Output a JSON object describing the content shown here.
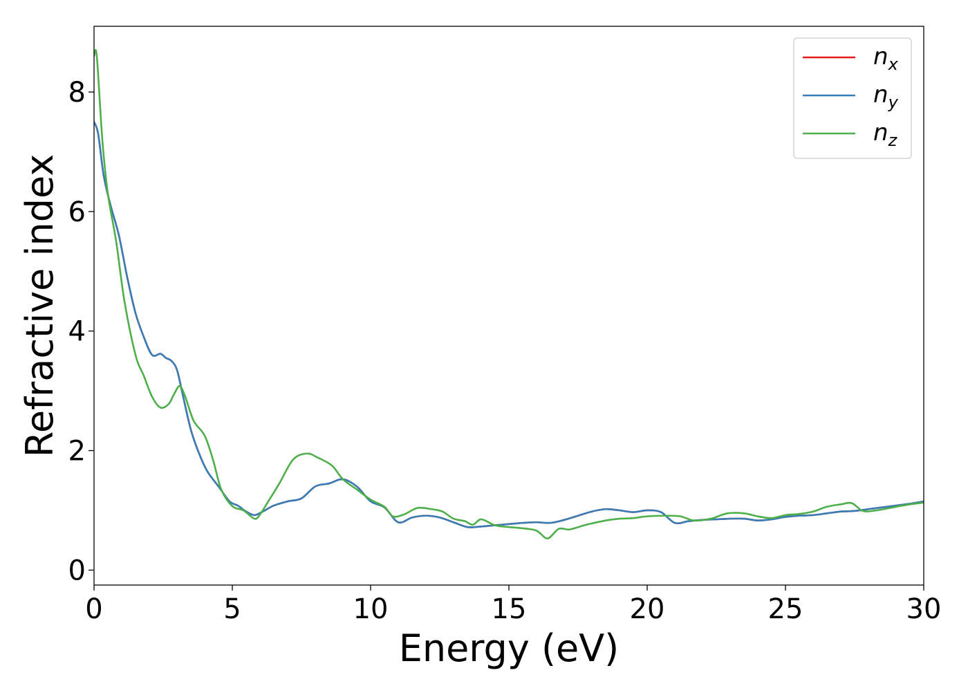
{
  "chart_data": {
    "type": "line",
    "title": "",
    "xlabel": "Energy (eV)",
    "ylabel": "Refractive index",
    "xlim": [
      0,
      30
    ],
    "ylim": [
      -0.25,
      9.1
    ],
    "xticks": [
      0,
      5,
      10,
      15,
      20,
      25,
      30
    ],
    "yticks": [
      0,
      2,
      4,
      6,
      8
    ],
    "grid": false,
    "legend_position": "top-right",
    "series": [
      {
        "name": "n_x",
        "legend_base": "n",
        "legend_sub": "x",
        "color": "#e41a1c",
        "x": [
          0,
          0.15,
          0.35,
          0.6,
          0.9,
          1.2,
          1.5,
          1.8,
          2.1,
          2.4,
          2.6,
          2.8,
          3.0,
          3.2,
          3.5,
          3.8,
          4.1,
          4.5,
          4.9,
          5.2,
          5.5,
          5.8,
          6.1,
          6.5,
          7.0,
          7.5,
          8.0,
          8.5,
          9.0,
          9.5,
          10.0,
          10.5,
          11.0,
          11.5,
          12.0,
          12.5,
          13.0,
          13.5,
          14.0,
          14.5,
          15.0,
          15.5,
          16.0,
          16.5,
          17.0,
          17.5,
          18.0,
          18.5,
          19.0,
          19.5,
          20.0,
          20.5,
          21.0,
          21.5,
          22.0,
          22.5,
          23.0,
          23.5,
          24.0,
          24.5,
          25.0,
          25.5,
          26.0,
          26.5,
          27.0,
          27.5,
          28.0,
          28.5,
          29.0,
          29.5,
          30.0
        ],
        "y": [
          7.5,
          7.3,
          6.6,
          6.1,
          5.6,
          4.9,
          4.3,
          3.9,
          3.6,
          3.62,
          3.55,
          3.5,
          3.35,
          2.95,
          2.35,
          1.95,
          1.65,
          1.4,
          1.15,
          1.08,
          0.98,
          0.92,
          0.98,
          1.08,
          1.15,
          1.2,
          1.4,
          1.45,
          1.52,
          1.4,
          1.15,
          1.05,
          0.8,
          0.88,
          0.91,
          0.88,
          0.8,
          0.72,
          0.73,
          0.75,
          0.77,
          0.79,
          0.8,
          0.79,
          0.84,
          0.91,
          0.98,
          1.02,
          1.0,
          0.97,
          1.0,
          0.97,
          0.79,
          0.82,
          0.84,
          0.85,
          0.86,
          0.86,
          0.83,
          0.85,
          0.89,
          0.91,
          0.92,
          0.95,
          0.98,
          0.99,
          1.02,
          1.05,
          1.08,
          1.11,
          1.15
        ]
      },
      {
        "name": "n_y",
        "legend_base": "n",
        "legend_sub": "y",
        "color": "#377eb8",
        "x": [
          0,
          0.15,
          0.35,
          0.6,
          0.9,
          1.2,
          1.5,
          1.8,
          2.1,
          2.4,
          2.6,
          2.8,
          3.0,
          3.2,
          3.5,
          3.8,
          4.1,
          4.5,
          4.9,
          5.2,
          5.5,
          5.8,
          6.1,
          6.5,
          7.0,
          7.5,
          8.0,
          8.5,
          9.0,
          9.5,
          10.0,
          10.5,
          11.0,
          11.5,
          12.0,
          12.5,
          13.0,
          13.5,
          14.0,
          14.5,
          15.0,
          15.5,
          16.0,
          16.5,
          17.0,
          17.5,
          18.0,
          18.5,
          19.0,
          19.5,
          20.0,
          20.5,
          21.0,
          21.5,
          22.0,
          22.5,
          23.0,
          23.5,
          24.0,
          24.5,
          25.0,
          25.5,
          26.0,
          26.5,
          27.0,
          27.5,
          28.0,
          28.5,
          29.0,
          29.5,
          30.0
        ],
        "y": [
          7.5,
          7.3,
          6.6,
          6.1,
          5.6,
          4.9,
          4.3,
          3.9,
          3.6,
          3.62,
          3.55,
          3.5,
          3.35,
          2.95,
          2.35,
          1.95,
          1.65,
          1.4,
          1.15,
          1.08,
          0.98,
          0.92,
          0.98,
          1.08,
          1.15,
          1.2,
          1.4,
          1.45,
          1.52,
          1.4,
          1.15,
          1.05,
          0.8,
          0.88,
          0.91,
          0.88,
          0.8,
          0.72,
          0.73,
          0.75,
          0.77,
          0.79,
          0.8,
          0.79,
          0.84,
          0.91,
          0.98,
          1.02,
          1.0,
          0.97,
          1.0,
          0.97,
          0.79,
          0.82,
          0.84,
          0.85,
          0.86,
          0.86,
          0.83,
          0.85,
          0.89,
          0.91,
          0.92,
          0.95,
          0.98,
          0.99,
          1.02,
          1.05,
          1.08,
          1.11,
          1.15
        ]
      },
      {
        "name": "n_z",
        "legend_base": "n",
        "legend_sub": "z",
        "color": "#4daf4a",
        "x": [
          0,
          0.1,
          0.3,
          0.5,
          0.8,
          1.1,
          1.5,
          1.8,
          2.1,
          2.4,
          2.7,
          2.9,
          3.1,
          3.3,
          3.6,
          4.0,
          4.3,
          4.6,
          5.0,
          5.4,
          5.8,
          6.0,
          6.3,
          6.7,
          7.2,
          7.7,
          8.1,
          8.6,
          9.0,
          9.5,
          10.0,
          10.5,
          10.8,
          11.2,
          11.7,
          12.2,
          12.6,
          13.0,
          13.4,
          13.7,
          14.0,
          14.5,
          15.0,
          15.5,
          16.0,
          16.4,
          16.8,
          17.2,
          17.8,
          18.5,
          19.0,
          19.5,
          20.0,
          20.7,
          21.2,
          21.7,
          22.3,
          22.9,
          23.5,
          24.0,
          24.5,
          25.0,
          25.5,
          26.0,
          26.5,
          27.0,
          27.4,
          27.8,
          28.3,
          29.0,
          29.5,
          30.0
        ],
        "y": [
          8.6,
          8.6,
          7.2,
          6.3,
          5.5,
          4.5,
          3.6,
          3.25,
          2.9,
          2.72,
          2.78,
          2.95,
          3.08,
          2.9,
          2.5,
          2.25,
          1.85,
          1.35,
          1.07,
          1.0,
          0.86,
          0.93,
          1.15,
          1.45,
          1.85,
          1.95,
          1.88,
          1.75,
          1.52,
          1.35,
          1.18,
          1.06,
          0.9,
          0.93,
          1.04,
          1.02,
          0.98,
          0.86,
          0.82,
          0.76,
          0.85,
          0.75,
          0.72,
          0.7,
          0.66,
          0.53,
          0.69,
          0.68,
          0.76,
          0.83,
          0.86,
          0.87,
          0.9,
          0.91,
          0.9,
          0.83,
          0.86,
          0.95,
          0.95,
          0.9,
          0.87,
          0.92,
          0.94,
          0.98,
          1.06,
          1.1,
          1.12,
          0.99,
          1.0,
          1.06,
          1.1,
          1.13
        ]
      }
    ]
  }
}
